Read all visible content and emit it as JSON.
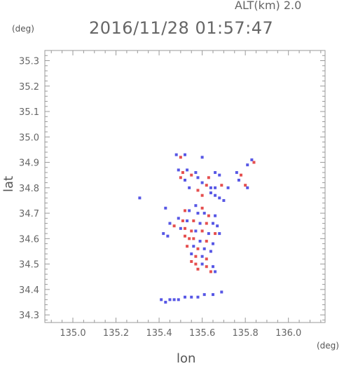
{
  "header": {
    "alt_label": "ALT(km) 2.0",
    "timestamp": "2016/11/28 01:57:47"
  },
  "chart_data": {
    "type": "scatter",
    "title": "2016/11/28 01:57:47",
    "xlabel": "lon",
    "ylabel": "lat",
    "x_unit": "(deg)",
    "y_unit": "(deg)",
    "xlim": [
      134.87,
      136.17
    ],
    "ylim": [
      34.27,
      35.34
    ],
    "x_ticks": [
      135.0,
      135.2,
      135.4,
      135.6,
      135.8,
      136.0
    ],
    "x_tick_labels": [
      "135.0",
      "135.2",
      "135.4",
      "135.6",
      "135.8",
      "136.0"
    ],
    "y_ticks": [
      34.3,
      34.4,
      34.5,
      34.6,
      34.7,
      34.8,
      34.9,
      35.0,
      35.1,
      35.2,
      35.3
    ],
    "y_tick_labels": [
      "34.3",
      "34.4",
      "34.5",
      "34.6",
      "34.7",
      "34.8",
      "34.9",
      "35.0",
      "35.1",
      "35.2",
      "35.3"
    ],
    "grid": false,
    "colors": {
      "positive": "#e03030",
      "negative": "#3a3ae0"
    },
    "points": [
      {
        "x": 135.48,
        "y": 34.93,
        "v": -1
      },
      {
        "x": 135.5,
        "y": 34.92,
        "v": 1
      },
      {
        "x": 135.52,
        "y": 34.93,
        "v": -1
      },
      {
        "x": 135.6,
        "y": 34.92,
        "v": -1
      },
      {
        "x": 135.83,
        "y": 34.91,
        "v": -1
      },
      {
        "x": 135.84,
        "y": 34.9,
        "v": 1
      },
      {
        "x": 135.81,
        "y": 34.89,
        "v": -1
      },
      {
        "x": 135.49,
        "y": 34.87,
        "v": -1
      },
      {
        "x": 135.51,
        "y": 34.86,
        "v": 1
      },
      {
        "x": 135.53,
        "y": 34.87,
        "v": -1
      },
      {
        "x": 135.55,
        "y": 34.85,
        "v": 1
      },
      {
        "x": 135.57,
        "y": 34.86,
        "v": -1
      },
      {
        "x": 135.5,
        "y": 34.84,
        "v": 1
      },
      {
        "x": 135.52,
        "y": 34.83,
        "v": -1
      },
      {
        "x": 135.58,
        "y": 34.84,
        "v": -1
      },
      {
        "x": 135.66,
        "y": 34.86,
        "v": -1
      },
      {
        "x": 135.68,
        "y": 34.85,
        "v": -1
      },
      {
        "x": 135.63,
        "y": 34.84,
        "v": 1
      },
      {
        "x": 135.76,
        "y": 34.86,
        "v": -1
      },
      {
        "x": 135.78,
        "y": 34.85,
        "v": 1
      },
      {
        "x": 135.77,
        "y": 34.83,
        "v": -1
      },
      {
        "x": 135.6,
        "y": 34.82,
        "v": -1
      },
      {
        "x": 135.62,
        "y": 34.81,
        "v": 1
      },
      {
        "x": 135.64,
        "y": 34.8,
        "v": -1
      },
      {
        "x": 135.66,
        "y": 34.8,
        "v": -1
      },
      {
        "x": 135.69,
        "y": 34.81,
        "v": 1
      },
      {
        "x": 135.72,
        "y": 34.8,
        "v": -1
      },
      {
        "x": 135.8,
        "y": 34.81,
        "v": 1
      },
      {
        "x": 135.81,
        "y": 34.8,
        "v": -1
      },
      {
        "x": 135.54,
        "y": 34.8,
        "v": -1
      },
      {
        "x": 135.58,
        "y": 34.79,
        "v": 1
      },
      {
        "x": 135.64,
        "y": 34.78,
        "v": -1
      },
      {
        "x": 135.66,
        "y": 34.77,
        "v": -1
      },
      {
        "x": 135.6,
        "y": 34.77,
        "v": 1
      },
      {
        "x": 135.31,
        "y": 34.76,
        "v": -1
      },
      {
        "x": 135.68,
        "y": 34.76,
        "v": -1
      },
      {
        "x": 135.7,
        "y": 34.75,
        "v": -1
      },
      {
        "x": 135.57,
        "y": 34.73,
        "v": -1
      },
      {
        "x": 135.6,
        "y": 34.72,
        "v": 1
      },
      {
        "x": 135.43,
        "y": 34.72,
        "v": -1
      },
      {
        "x": 135.52,
        "y": 34.71,
        "v": 1
      },
      {
        "x": 135.54,
        "y": 34.71,
        "v": -1
      },
      {
        "x": 135.58,
        "y": 34.7,
        "v": -1
      },
      {
        "x": 135.61,
        "y": 34.7,
        "v": -1
      },
      {
        "x": 135.63,
        "y": 34.69,
        "v": 1
      },
      {
        "x": 135.66,
        "y": 34.69,
        "v": -1
      },
      {
        "x": 135.49,
        "y": 34.68,
        "v": -1
      },
      {
        "x": 135.51,
        "y": 34.67,
        "v": 1
      },
      {
        "x": 135.53,
        "y": 34.67,
        "v": -1
      },
      {
        "x": 135.56,
        "y": 34.67,
        "v": 1
      },
      {
        "x": 135.59,
        "y": 34.66,
        "v": -1
      },
      {
        "x": 135.62,
        "y": 34.66,
        "v": 1
      },
      {
        "x": 135.65,
        "y": 34.66,
        "v": -1
      },
      {
        "x": 135.67,
        "y": 34.65,
        "v": -1
      },
      {
        "x": 135.45,
        "y": 34.66,
        "v": -1
      },
      {
        "x": 135.47,
        "y": 34.65,
        "v": 1
      },
      {
        "x": 135.5,
        "y": 34.64,
        "v": -1
      },
      {
        "x": 135.52,
        "y": 34.64,
        "v": 1
      },
      {
        "x": 135.55,
        "y": 34.63,
        "v": 1
      },
      {
        "x": 135.57,
        "y": 34.63,
        "v": -1
      },
      {
        "x": 135.6,
        "y": 34.63,
        "v": 1
      },
      {
        "x": 135.63,
        "y": 34.62,
        "v": -1
      },
      {
        "x": 135.66,
        "y": 34.62,
        "v": 1
      },
      {
        "x": 135.68,
        "y": 34.62,
        "v": -1
      },
      {
        "x": 135.42,
        "y": 34.62,
        "v": -1
      },
      {
        "x": 135.44,
        "y": 34.61,
        "v": -1
      },
      {
        "x": 135.52,
        "y": 34.61,
        "v": 1
      },
      {
        "x": 135.54,
        "y": 34.6,
        "v": 1
      },
      {
        "x": 135.56,
        "y": 34.6,
        "v": 1
      },
      {
        "x": 135.59,
        "y": 34.59,
        "v": -1
      },
      {
        "x": 135.62,
        "y": 34.59,
        "v": 1
      },
      {
        "x": 135.65,
        "y": 34.58,
        "v": -1
      },
      {
        "x": 135.53,
        "y": 34.57,
        "v": 1
      },
      {
        "x": 135.56,
        "y": 34.57,
        "v": -1
      },
      {
        "x": 135.58,
        "y": 34.56,
        "v": 1
      },
      {
        "x": 135.61,
        "y": 34.56,
        "v": -1
      },
      {
        "x": 135.64,
        "y": 34.55,
        "v": -1
      },
      {
        "x": 135.55,
        "y": 34.54,
        "v": -1
      },
      {
        "x": 135.57,
        "y": 34.53,
        "v": 1
      },
      {
        "x": 135.6,
        "y": 34.53,
        "v": -1
      },
      {
        "x": 135.62,
        "y": 34.52,
        "v": 1
      },
      {
        "x": 135.55,
        "y": 34.51,
        "v": 1
      },
      {
        "x": 135.57,
        "y": 34.5,
        "v": 1
      },
      {
        "x": 135.6,
        "y": 34.5,
        "v": -1
      },
      {
        "x": 135.62,
        "y": 34.49,
        "v": 1
      },
      {
        "x": 135.65,
        "y": 34.49,
        "v": -1
      },
      {
        "x": 135.58,
        "y": 34.48,
        "v": 1
      },
      {
        "x": 135.64,
        "y": 34.47,
        "v": 1
      },
      {
        "x": 135.66,
        "y": 34.47,
        "v": -1
      },
      {
        "x": 135.41,
        "y": 34.36,
        "v": -1
      },
      {
        "x": 135.43,
        "y": 34.35,
        "v": -1
      },
      {
        "x": 135.45,
        "y": 34.36,
        "v": -1
      },
      {
        "x": 135.47,
        "y": 34.36,
        "v": -1
      },
      {
        "x": 135.49,
        "y": 34.36,
        "v": -1
      },
      {
        "x": 135.52,
        "y": 34.37,
        "v": -1
      },
      {
        "x": 135.55,
        "y": 34.37,
        "v": -1
      },
      {
        "x": 135.58,
        "y": 34.37,
        "v": -1
      },
      {
        "x": 135.61,
        "y": 34.38,
        "v": -1
      },
      {
        "x": 135.65,
        "y": 34.38,
        "v": -1
      },
      {
        "x": 135.69,
        "y": 34.39,
        "v": -1
      }
    ]
  }
}
